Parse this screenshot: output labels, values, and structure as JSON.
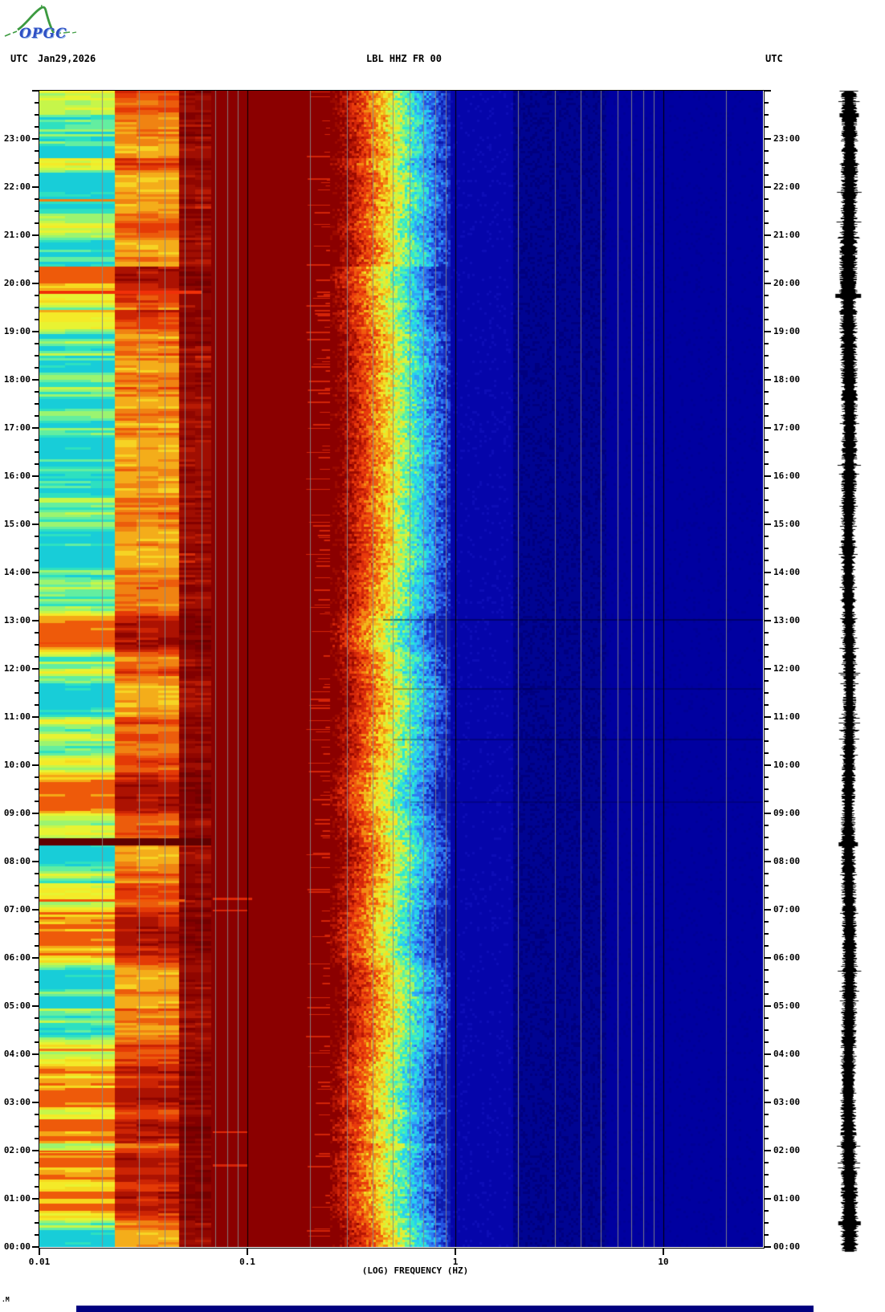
{
  "header": {
    "logo": {
      "text": "OPGC",
      "curve_color": "#3c9a40",
      "text_color": "#2e4fc4"
    },
    "utc_label_left": "UTC",
    "date": "Jan29,2026",
    "title": "LBL HHZ FR 00",
    "utc_label_right": "UTC"
  },
  "chart_data": {
    "type": "heatmap",
    "title": "LBL HHZ FR 00",
    "station": "LBL",
    "channel": "HHZ",
    "network": "FR",
    "location": "00",
    "date_utc": "Jan29,2026",
    "xlabel": "(LOG) FREQUENCY (HZ)",
    "x_scale": "log10",
    "freq_min_hz": 0.01,
    "freq_max_hz": 30,
    "x_ticks": [
      {
        "hz": 0.01,
        "label": "0.01"
      },
      {
        "hz": 0.1,
        "label": "0.1"
      },
      {
        "hz": 1,
        "label": "1"
      },
      {
        "hz": 10,
        "label": "10"
      }
    ],
    "minor_gridlines_hz": [
      0.02,
      0.03,
      0.04,
      0.05,
      0.06,
      0.07,
      0.08,
      0.09,
      0.2,
      0.3,
      0.4,
      0.5,
      0.6,
      0.7,
      0.8,
      0.9,
      2,
      3,
      4,
      5,
      6,
      7,
      8,
      9,
      20,
      30
    ],
    "major_gridlines_hz": [
      0.1,
      1,
      10
    ],
    "gridline_minor_color": "rgba(135,135,135,0.9)",
    "gridline_major_color": "#000000",
    "time_axis": {
      "direction": "00:00 at bottom to 24:00 at top",
      "minor_tick_minutes": 15,
      "hour_labels": [
        "00:00",
        "01:00",
        "02:00",
        "03:00",
        "04:00",
        "05:00",
        "06:00",
        "07:00",
        "08:00",
        "09:00",
        "10:00",
        "11:00",
        "12:00",
        "13:00",
        "14:00",
        "15:00",
        "16:00",
        "17:00",
        "18:00",
        "19:00",
        "20:00",
        "21:00",
        "22:00",
        "23:00"
      ]
    },
    "bands": [
      {
        "name": "long-period-stripes",
        "freq_hz": [
          0.01,
          0.023
        ],
        "style": "stripes",
        "bias": 0,
        "gain": 1,
        "jitter": 0.1,
        "cells": 3,
        "palette": [
          "#18cdd8",
          "#2ee0c0",
          "#63eea0",
          "#9bf470",
          "#c6f64a",
          "#e8f332",
          "#f4ea28",
          "#f6d91f",
          "#f4a816",
          "#ee5a0a"
        ]
      },
      {
        "name": "mid-stripes",
        "freq_hz": [
          0.023,
          0.047
        ],
        "style": "stripes",
        "bias": 0.25,
        "gain": 0.6,
        "jitter": 0.16,
        "cells": 3,
        "palette": [
          "#f6ef3a",
          "#f6d424",
          "#f4ad1a",
          "#f08312",
          "#ec5c0c",
          "#e43a06",
          "#cc2404",
          "#ac1202",
          "#8e0400"
        ]
      },
      {
        "name": "dark-stripes",
        "freq_hz": [
          0.047,
          0.067
        ],
        "style": "stripes",
        "bias": 0.3,
        "gain": 0.55,
        "jitter": 0.2,
        "cells": 2,
        "alt": true,
        "palette": [
          "#ee4612",
          "#d62c08",
          "#b81a04",
          "#a00e02",
          "#900600",
          "#820000",
          "#740000",
          "#6a0000"
        ]
      },
      {
        "name": "saturated-microseism",
        "freq_hz": [
          0.067,
          0.25
        ],
        "style": "solid",
        "color": "#8b0000"
      },
      {
        "name": "microseism-rolloff",
        "freq_hz": [
          0.25,
          0.95
        ],
        "style": "gradient",
        "palette": [
          "#8b0000",
          "#9c0a00",
          "#b61604",
          "#d2260a",
          "#e83a0c",
          "#f05a0e",
          "#f28a14",
          "#f2b81c",
          "#f2e226",
          "#d8f23c",
          "#a6f562",
          "#60f0a0",
          "#30e8d0",
          "#28cdf0",
          "#2fa6f4",
          "#2e7cf0",
          "#2451e0",
          "#1730c4",
          "#0c1aac"
        ]
      },
      {
        "name": "high-frequency-quiet",
        "freq_hz": [
          0.95,
          30
        ],
        "style": "zones",
        "zones": [
          {
            "freq_hz": [
              0.95,
              1.9
            ],
            "color": "#0505aa",
            "speckle": "#0d0db6",
            "speckle_p": 0.08
          },
          {
            "freq_hz": [
              1.9,
              5.3
            ],
            "color": "#000492",
            "speckle": "#000080",
            "speckle_p": 0.3
          },
          {
            "freq_hz": [
              5.3,
              30
            ],
            "color": "#0000a0",
            "speckle": "#000097",
            "speckle_p": 0.1
          }
        ]
      }
    ],
    "events": [
      {
        "time_utc": "21:42",
        "freq_hz": [
          0.01,
          0.023
        ],
        "color": "#f08010",
        "duration_min": 3
      },
      {
        "time_utc": "19:52",
        "freq_hz": [
          0.01,
          0.023
        ],
        "color": "#f5a012",
        "duration_min": 2
      },
      {
        "time_utc": "19:47",
        "freq_hz": [
          0.01,
          0.06
        ],
        "color": "#f03008",
        "duration_min": 4
      },
      {
        "time_utc": "12:31",
        "freq_hz": [
          0.01,
          0.023
        ],
        "color": "#ee4808",
        "duration_min": 2
      },
      {
        "time_utc": "08:20",
        "freq_hz": [
          0.01,
          0.067
        ],
        "color": "#600000",
        "duration_min": 9
      },
      {
        "time_utc": "07:12",
        "freq_hz": [
          0.068,
          0.105
        ],
        "color": "#e02808",
        "duration_min": 3
      },
      {
        "time_utc": "07:10",
        "freq_hz": [
          0.01,
          0.05
        ],
        "color": "#f05808",
        "duration_min": 3
      },
      {
        "time_utc": "06:58",
        "freq_hz": [
          0.068,
          0.1
        ],
        "color": "#d82408",
        "duration_min": 2
      },
      {
        "time_utc": "04:04",
        "freq_hz": [
          0.01,
          0.023
        ],
        "color": "#f07818",
        "duration_min": 3
      },
      {
        "time_utc": "02:22",
        "freq_hz": [
          0.068,
          0.1
        ],
        "color": "#e02808",
        "duration_min": 2
      },
      {
        "time_utc": "01:58",
        "freq_hz": [
          0.01,
          0.023
        ],
        "color": "#f05808",
        "duration_min": 2
      },
      {
        "time_utc": "01:40",
        "freq_hz": [
          0.068,
          0.1
        ],
        "color": "#d82408",
        "duration_min": 3
      }
    ],
    "dark_lines": [
      {
        "time_utc": "13:02",
        "freq_hz": [
          0.45,
          30
        ],
        "alpha": 0.45
      },
      {
        "time_utc": "11:36",
        "freq_hz": [
          0.5,
          30
        ],
        "alpha": 0.3
      },
      {
        "time_utc": "10:33",
        "freq_hz": [
          0.5,
          30
        ],
        "alpha": 0.3
      },
      {
        "time_utc": "09:15",
        "freq_hz": [
          0.6,
          30
        ],
        "alpha": 0.25
      }
    ]
  },
  "seismogram": {
    "color": "#000000",
    "amplitude_keyframes": [
      [
        0,
        10
      ],
      [
        250,
        11
      ],
      [
        420,
        10
      ],
      [
        600,
        8.5
      ],
      [
        800,
        8
      ],
      [
        1000,
        9
      ],
      [
        1250,
        9.5
      ],
      [
        1446,
        11
      ]
    ],
    "spikes": [
      {
        "time_utc": "23:30",
        "half_width": 12
      },
      {
        "time_utc": "19:45",
        "half_width": 16
      },
      {
        "time_utc": "08:22",
        "half_width": 12
      },
      {
        "time_utc": "00:30",
        "half_width": 14
      }
    ]
  },
  "footer": {
    "corner_mark": ".M",
    "bottom_bar_color": "#000080"
  }
}
